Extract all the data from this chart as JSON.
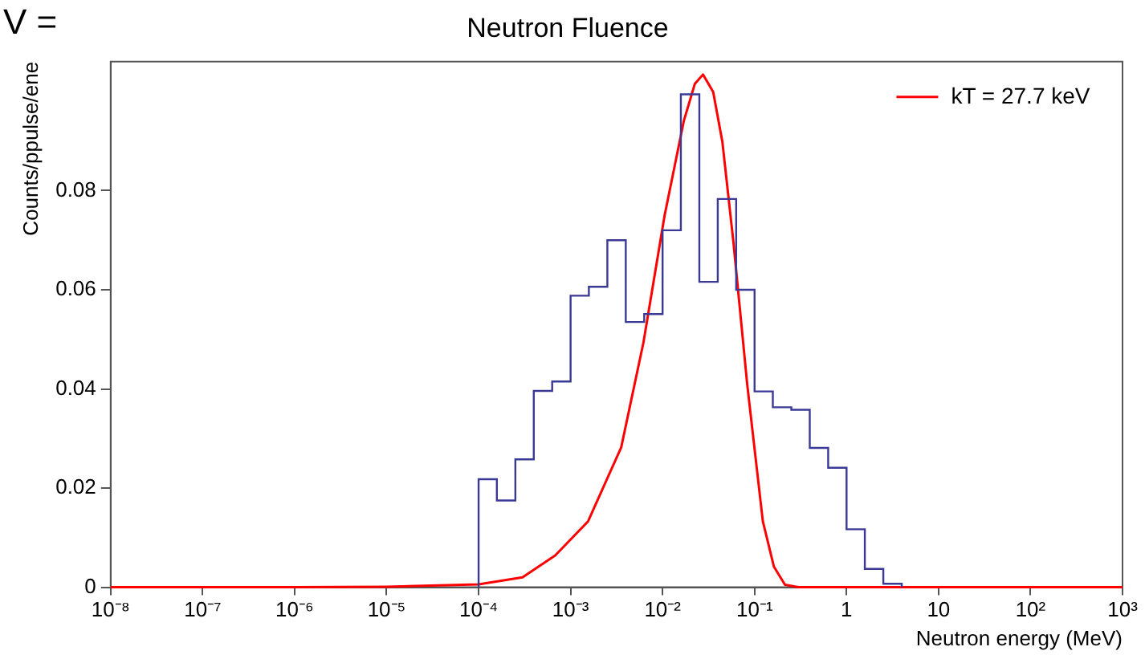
{
  "chart_data": {
    "type": "histogram",
    "title": "Neutron Fluence",
    "xlabel": "Neutron energy (MeV)",
    "ylabel": "Counts/ppulse/ene",
    "annotations": [
      "V ="
    ],
    "log": "x",
    "legend": "top right",
    "xlim": [
      1e-08,
      1000
    ],
    "xticks": [
      {
        "value": 1e-08,
        "label": "10⁻⁸"
      },
      {
        "value": 1e-07,
        "label": "10⁻⁷"
      },
      {
        "value": 1e-06,
        "label": "10⁻⁶"
      },
      {
        "value": 1e-05,
        "label": "10⁻⁵"
      },
      {
        "value": 0.0001,
        "label": "10⁻⁴"
      },
      {
        "value": 0.001,
        "label": "10⁻³"
      },
      {
        "value": 0.01,
        "label": "10⁻²"
      },
      {
        "value": 0.1,
        "label": "10⁻¹"
      },
      1,
      10,
      {
        "value": 100,
        "label": "10²"
      },
      {
        "value": 1000,
        "label": "10³"
      }
    ],
    "ylim": [
      0,
      0.106
    ],
    "yticks": [
      0,
      0.02,
      0.04,
      0.06,
      0.08
    ],
    "series": [
      {
        "type": "histogram",
        "color": "#3a3a96",
        "bins": [
          0.0001,
          0.000158,
          0.000251,
          0.000398,
          0.000631,
          0.001,
          0.00158,
          0.00251,
          0.00398,
          0.00631,
          0.01,
          0.0158,
          0.0251,
          0.0398,
          0.0631,
          0.1,
          0.158,
          0.251,
          0.398,
          0.631,
          1,
          1.58,
          2.51,
          3.98
        ],
        "values": [
          0.0218,
          0.0175,
          0.0258,
          0.0396,
          0.0415,
          0.0588,
          0.0606,
          0.07,
          0.0535,
          0.0551,
          0.072,
          0.0994,
          0.0616,
          0.0783,
          0.06,
          0.0395,
          0.0363,
          0.0358,
          0.0281,
          0.0241,
          0.0117,
          0.0037,
          0.0007
        ]
      },
      {
        "type": "line",
        "name": "kT = 27.7 keV",
        "color": "#ff0000",
        "x": [
          1e-08,
          1e-06,
          1e-05,
          0.0001,
          0.0003,
          0.00068,
          0.00155,
          0.00355,
          0.0062,
          0.0105,
          0.017,
          0.0224,
          0.0275,
          0.0355,
          0.0447,
          0.0589,
          0.0832,
          0.123,
          0.162,
          0.214,
          0.3,
          1000
        ],
        "values": [
          0,
          0,
          0.0001,
          0.0006,
          0.002,
          0.0064,
          0.0133,
          0.0282,
          0.0494,
          0.0749,
          0.094,
          0.1015,
          0.1034,
          0.0999,
          0.0898,
          0.0696,
          0.0409,
          0.0133,
          0.0042,
          0.0005,
          0,
          0
        ]
      }
    ]
  }
}
